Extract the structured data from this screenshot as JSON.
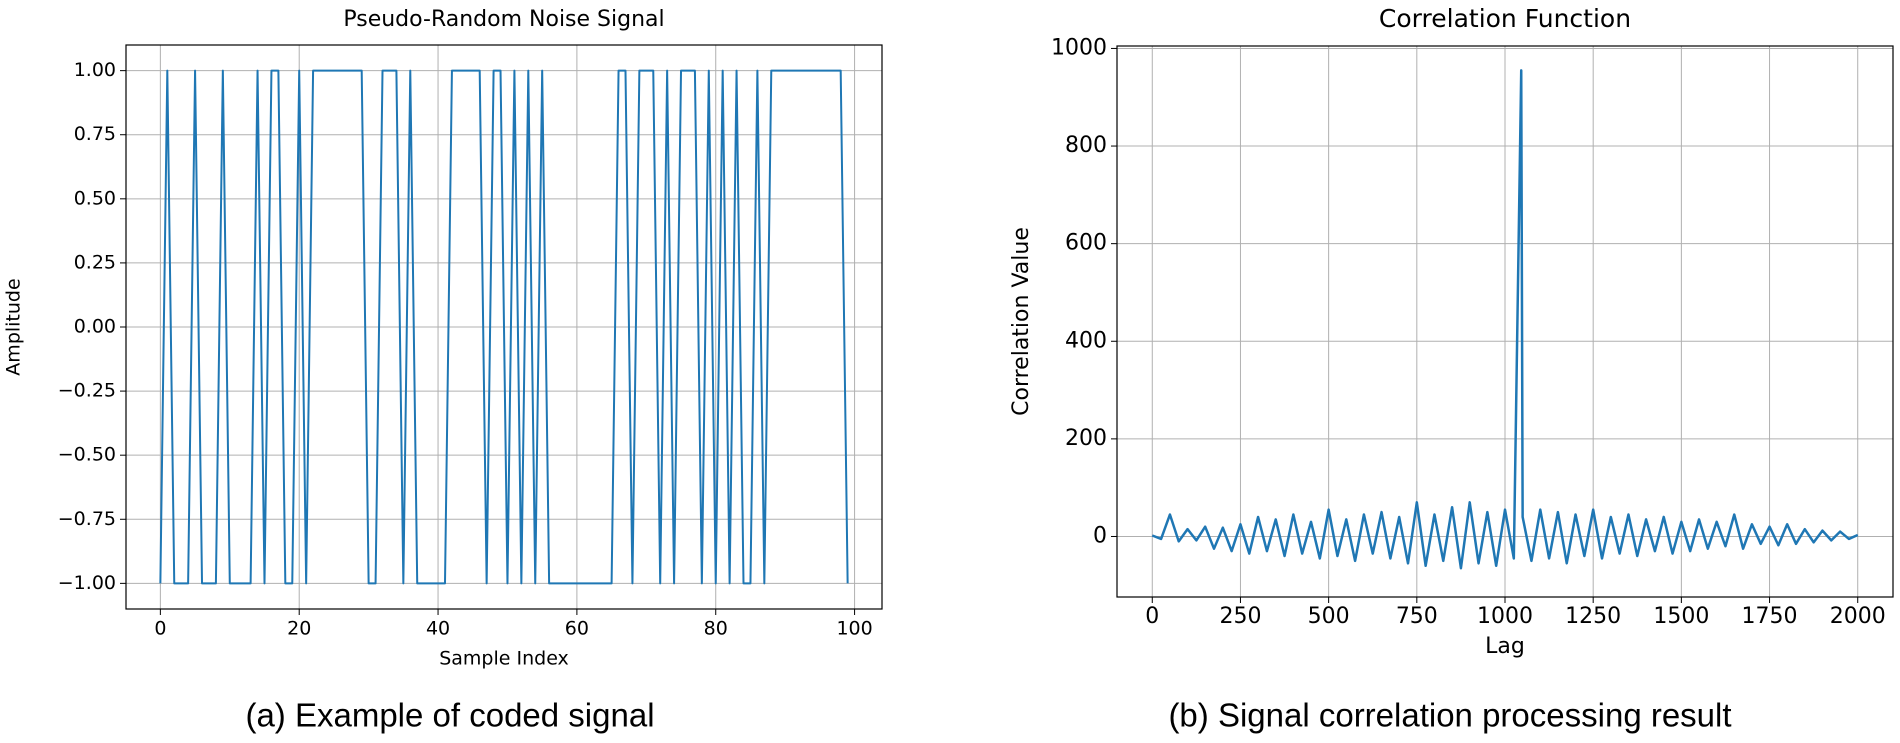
{
  "chart_data": [
    {
      "type": "line",
      "title": "Pseudo-Random Noise Signal",
      "x_label": "Sample Index",
      "y_label": "Amplitude",
      "x": [
        0,
        1,
        2,
        3,
        4,
        5,
        6,
        7,
        8,
        9,
        10,
        11,
        12,
        13,
        14,
        15,
        16,
        17,
        18,
        19,
        20,
        21,
        22,
        23,
        24,
        25,
        26,
        27,
        28,
        29,
        30,
        31,
        32,
        33,
        34,
        35,
        36,
        37,
        38,
        39,
        40,
        41,
        42,
        43,
        44,
        45,
        46,
        47,
        48,
        49,
        50,
        51,
        52,
        53,
        54,
        55,
        56,
        57,
        58,
        59,
        60,
        61,
        62,
        63,
        64,
        65,
        66,
        67,
        68,
        69,
        70,
        71,
        72,
        73,
        74,
        75,
        76,
        77,
        78,
        79,
        80,
        81,
        82,
        83,
        84,
        85,
        86,
        87,
        88,
        89,
        90,
        91,
        92,
        93,
        94,
        95,
        96,
        97,
        98,
        99
      ],
      "series": [
        {
          "color": "#1f77b4",
          "values": [
            -1,
            1,
            -1,
            -1,
            -1,
            1,
            -1,
            -1,
            -1,
            1,
            -1,
            -1,
            -1,
            -1,
            1,
            -1,
            1,
            1,
            -1,
            -1,
            1,
            -1,
            1,
            1,
            1,
            1,
            1,
            1,
            1,
            1,
            -1,
            -1,
            1,
            1,
            1,
            -1,
            1,
            -1,
            -1,
            -1,
            -1,
            -1,
            1,
            1,
            1,
            1,
            1,
            -1,
            1,
            1,
            -1,
            1,
            -1,
            1,
            -1,
            1,
            -1,
            -1,
            -1,
            -1,
            -1,
            -1,
            -1,
            -1,
            -1,
            -1,
            1,
            1,
            -1,
            1,
            1,
            1,
            -1,
            1,
            -1,
            1,
            1,
            1,
            -1,
            1,
            -1,
            1,
            -1,
            1,
            -1,
            -1,
            1,
            -1,
            1,
            1,
            1,
            1,
            1,
            1,
            1,
            1,
            1,
            1,
            1,
            -1
          ]
        }
      ],
      "xlim": [
        -4.95,
        103.95
      ],
      "ylim": [
        -1.1,
        1.1
      ],
      "xticks": [
        0,
        20,
        40,
        60,
        80,
        100
      ],
      "yticks": [
        {
          "value": 1,
          "label": "1.00"
        },
        {
          "value": 0.75,
          "label": "0.75"
        },
        {
          "value": 0.5,
          "label": "0.50"
        },
        {
          "value": 0.25,
          "label": "0.25"
        },
        {
          "value": 0,
          "label": "0.00"
        },
        {
          "value": -0.25,
          "label": "−0.25"
        },
        {
          "value": -0.5,
          "label": "−0.50"
        },
        {
          "value": -0.75,
          "label": "−0.75"
        },
        {
          "value": -1,
          "label": "−1.00"
        }
      ],
      "grid": true
    },
    {
      "type": "line",
      "title": "Correlation Function",
      "x_label": "Lag",
      "y_label": "Correlation Value",
      "x": [
        0,
        25,
        50,
        75,
        100,
        125,
        150,
        175,
        200,
        225,
        250,
        275,
        300,
        325,
        350,
        375,
        400,
        425,
        450,
        475,
        500,
        525,
        550,
        575,
        600,
        625,
        650,
        675,
        700,
        725,
        750,
        775,
        800,
        825,
        850,
        875,
        900,
        925,
        950,
        975,
        1000,
        1025,
        1046,
        1050,
        1075,
        1100,
        1125,
        1150,
        1175,
        1200,
        1225,
        1250,
        1275,
        1300,
        1325,
        1350,
        1375,
        1400,
        1425,
        1450,
        1475,
        1500,
        1525,
        1550,
        1575,
        1600,
        1625,
        1650,
        1675,
        1700,
        1725,
        1750,
        1775,
        1800,
        1825,
        1850,
        1875,
        1900,
        1925,
        1950,
        1975,
        2000
      ],
      "series": [
        {
          "color": "#1f77b4",
          "values": [
            2,
            -5,
            45,
            -10,
            15,
            -8,
            20,
            -25,
            18,
            -30,
            25,
            -35,
            40,
            -30,
            35,
            -40,
            45,
            -35,
            30,
            -45,
            55,
            -40,
            35,
            -50,
            45,
            -35,
            50,
            -45,
            40,
            -55,
            70,
            -60,
            45,
            -50,
            60,
            -65,
            70,
            -55,
            50,
            -60,
            55,
            -45,
            955,
            40,
            -50,
            55,
            -45,
            50,
            -55,
            45,
            -40,
            55,
            -45,
            40,
            -35,
            45,
            -40,
            35,
            -30,
            40,
            -35,
            30,
            -30,
            35,
            -25,
            30,
            -20,
            45,
            -25,
            25,
            -15,
            20,
            -18,
            25,
            -15,
            15,
            -12,
            12,
            -8,
            10,
            -5,
            3
          ]
        }
      ],
      "xlim": [
        -100,
        2100
      ],
      "ylim": [
        -124,
        1005
      ],
      "xticks": [
        0,
        250,
        500,
        750,
        1000,
        1250,
        1500,
        1750,
        2000
      ],
      "yticks": [
        0,
        200,
        400,
        600,
        800,
        1000
      ],
      "grid": true
    }
  ],
  "captions": [
    "(a) Example of coded signal",
    "(b) Signal correlation processing result"
  ]
}
